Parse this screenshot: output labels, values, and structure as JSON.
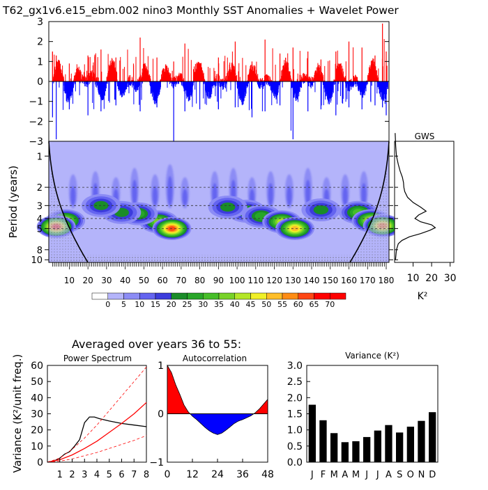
{
  "chart_data": [
    {
      "type": "bar",
      "title": "T62_gx1v6.e15_ebm.002 nino3 Monthly SST Anomalies + Wavelet Power",
      "xlabel": "",
      "ylabel": "",
      "ylim": [
        -3,
        3
      ],
      "yticks": [
        "3",
        "2",
        "1",
        "0",
        "−1",
        "−2",
        "−3"
      ],
      "colors": {
        "positive": "#ff0000",
        "negative": "#0000ff"
      },
      "x_range_years": [
        1,
        180
      ],
      "envelope": [
        {
          "year": 1,
          "max": 1.5,
          "min": -1.8
        },
        {
          "year": 3,
          "max": 1.3,
          "min": -2.9
        },
        {
          "year": 10,
          "max": 0.9,
          "min": -1.4
        },
        {
          "year": 20,
          "max": 1.3,
          "min": -1.7
        },
        {
          "year": 27,
          "max": 1.6,
          "min": -1.5
        },
        {
          "year": 35,
          "max": 1.2,
          "min": -1.2
        },
        {
          "year": 48,
          "max": 2.2,
          "min": -1.5
        },
        {
          "year": 57,
          "max": 1.2,
          "min": -1.3
        },
        {
          "year": 66,
          "max": 1.0,
          "min": -3.0
        },
        {
          "year": 72,
          "max": 1.9,
          "min": -1.5
        },
        {
          "year": 80,
          "max": 0.9,
          "min": -1.4
        },
        {
          "year": 90,
          "max": 1.2,
          "min": -1.4
        },
        {
          "year": 99,
          "max": 2.0,
          "min": -1.3
        },
        {
          "year": 108,
          "max": 1.0,
          "min": -1.8
        },
        {
          "year": 115,
          "max": 2.1,
          "min": -1.5
        },
        {
          "year": 123,
          "max": 1.4,
          "min": -1.2
        },
        {
          "year": 130,
          "max": 1.7,
          "min": -2.9
        },
        {
          "year": 138,
          "max": 1.5,
          "min": -1.5
        },
        {
          "year": 145,
          "max": 1.1,
          "min": -1.4
        },
        {
          "year": 153,
          "max": 1.5,
          "min": -1.7
        },
        {
          "year": 160,
          "max": 2.0,
          "min": -1.3
        },
        {
          "year": 167,
          "max": 1.7,
          "min": -1.4
        },
        {
          "year": 174,
          "max": 1.3,
          "min": -1.2
        },
        {
          "year": 178,
          "max": 2.9,
          "min": -1.3
        },
        {
          "year": 180,
          "max": 1.5,
          "min": -1.7
        }
      ]
    },
    {
      "type": "heatmap",
      "ylabel": "Period (years)",
      "xticks": [
        "10",
        "20",
        "30",
        "40",
        "50",
        "60",
        "70",
        "80",
        "90",
        "100",
        "110",
        "120",
        "130",
        "140",
        "150",
        "160",
        "170",
        "180"
      ],
      "yticks": [
        "1",
        "2",
        "3",
        "4",
        "5",
        "8",
        "10"
      ],
      "colorbar_labels": [
        "0",
        "5",
        "10",
        "15",
        "20",
        "25",
        "30",
        "35",
        "40",
        "45",
        "50",
        "55",
        "60",
        "65",
        "70"
      ],
      "colorbar_colors": [
        "#ffffff",
        "#b4b4fa",
        "#8c8cf5",
        "#6464f0",
        "#3c3cdc",
        "#1a8c28",
        "#28a628",
        "#46be28",
        "#78d228",
        "#b4e628",
        "#f0f028",
        "#ffbe28",
        "#ff8c14",
        "#ff4614",
        "#ff0000"
      ],
      "background_color": "#b4b4fa",
      "dashed_period_lines": [
        2,
        3,
        4,
        5
      ],
      "blobs": [
        {
          "year": 58,
          "period": 4.3,
          "level": 7
        },
        {
          "year": 65,
          "period": 5.0,
          "level": 12
        },
        {
          "year": 47,
          "period": 3.6,
          "level": 5
        },
        {
          "year": 38,
          "period": 3.5,
          "level": 4
        },
        {
          "year": 27,
          "period": 3.0,
          "level": 4
        },
        {
          "year": 8,
          "period": 4.2,
          "level": 8
        },
        {
          "year": 3,
          "period": 4.8,
          "level": 12
        },
        {
          "year": 105,
          "period": 3.4,
          "level": 5
        },
        {
          "year": 113,
          "period": 3.8,
          "level": 5
        },
        {
          "year": 124,
          "period": 4.3,
          "level": 8
        },
        {
          "year": 131,
          "period": 5.0,
          "level": 10
        },
        {
          "year": 95,
          "period": 3.1,
          "level": 4
        },
        {
          "year": 145,
          "period": 3.3,
          "level": 4
        },
        {
          "year": 165,
          "period": 3.5,
          "level": 6
        },
        {
          "year": 172,
          "period": 4.2,
          "level": 9
        },
        {
          "year": 178,
          "period": 4.7,
          "level": 11
        }
      ]
    },
    {
      "type": "line",
      "title": "GWS",
      "xlabel": "K²",
      "xticks": [
        "10",
        "20",
        "30"
      ],
      "xlim": [
        0,
        32
      ],
      "x": [
        0.3,
        0.6,
        1.0,
        2.0,
        3.0,
        4.2,
        4.8,
        5.0,
        5.5,
        7.0,
        10.0,
        14.0,
        17.0,
        13.0,
        11.0,
        14.0,
        20.0,
        22.0,
        19.0,
        14.0,
        8.0,
        4.0,
        2.0,
        1.0,
        0.5
      ],
      "periods": [
        0.6,
        0.8,
        1.0,
        1.2,
        1.4,
        1.6,
        1.8,
        2.0,
        2.2,
        2.5,
        2.8,
        3.1,
        3.4,
        3.7,
        4.0,
        4.3,
        4.6,
        4.9,
        5.2,
        5.6,
        6.0,
        6.5,
        7.0,
        8.0,
        10.0
      ]
    },
    {
      "title_top": "Averaged over years 36 to 55:",
      "panels": [
        {
          "type": "line",
          "title": "Power Spectrum",
          "ylabel": "Variance (K²/unit freq.)",
          "ylim": [
            0,
            60
          ],
          "xlim": [
            0,
            8
          ],
          "xticks": [
            "1",
            "2",
            "3",
            "4",
            "5",
            "6",
            "7",
            "8"
          ],
          "yticks": [
            "0",
            "10",
            "20",
            "30",
            "40",
            "50",
            "60"
          ],
          "series": [
            {
              "color": "#000000",
              "x": [
                0,
                0.3,
                0.6,
                1.0,
                1.4,
                1.8,
                2.2,
                2.6,
                3.0,
                3.4,
                3.8,
                4.2,
                5.0,
                6.0,
                7.0,
                8.0
              ],
              "values": [
                0,
                0.3,
                1.0,
                2.5,
                5.0,
                6.5,
                10.0,
                14.0,
                24.5,
                28.0,
                28.0,
                27.0,
                25.5,
                24.0,
                23.0,
                22.0
              ]
            },
            {
              "color": "#ff0000",
              "x": [
                0,
                1,
                2,
                3,
                4,
                5,
                6,
                7,
                8
              ],
              "values": [
                0,
                1.5,
                4.5,
                8.5,
                13.0,
                18.5,
                24.0,
                30.0,
                37.0
              ]
            },
            {
              "color": "#ff0000",
              "dashed": true,
              "x": [
                0,
                1,
                2,
                3,
                4,
                5,
                6,
                7,
                8
              ],
              "values": [
                0,
                2.5,
                8.0,
                15.0,
                23.0,
                32.0,
                41.0,
                50.0,
                59.0
              ]
            },
            {
              "color": "#ff0000",
              "dashed": true,
              "x": [
                0,
                1,
                2,
                3,
                4,
                5,
                6,
                7,
                8
              ],
              "values": [
                0,
                0.6,
                2.0,
                4.0,
                6.0,
                8.5,
                11.0,
                13.5,
                16.5
              ]
            }
          ]
        },
        {
          "type": "area",
          "title": "Autocorrelation",
          "ylim": [
            -1,
            1
          ],
          "xlim": [
            0,
            48
          ],
          "xticks": [
            "0",
            "12",
            "24",
            "36",
            "48"
          ],
          "yticks": [
            "−1",
            "0",
            "1"
          ],
          "colors": {
            "positive": "#ff0000",
            "negative": "#0000ff"
          },
          "x": [
            0,
            2,
            4,
            6,
            8,
            10,
            12,
            14,
            16,
            18,
            20,
            22,
            24,
            26,
            28,
            30,
            32,
            34,
            36,
            38,
            40,
            42,
            44,
            46,
            48
          ],
          "values": [
            1.0,
            0.85,
            0.6,
            0.4,
            0.18,
            0.04,
            -0.05,
            -0.12,
            -0.2,
            -0.28,
            -0.35,
            -0.4,
            -0.43,
            -0.4,
            -0.34,
            -0.27,
            -0.2,
            -0.15,
            -0.12,
            -0.08,
            -0.04,
            0.02,
            0.1,
            0.2,
            0.3
          ]
        },
        {
          "type": "bar",
          "title": "Variance (K²)",
          "ylim": [
            0,
            3.0
          ],
          "yticks": [
            "0.0",
            "0.5",
            "1.0",
            "1.5",
            "2.0",
            "2.5",
            "3.0"
          ],
          "categories": [
            "J",
            "F",
            "M",
            "A",
            "M",
            "J",
            "J",
            "A",
            "S",
            "O",
            "N",
            "D"
          ],
          "values": [
            1.78,
            1.3,
            0.9,
            0.62,
            0.65,
            0.78,
            0.98,
            1.15,
            0.92,
            1.1,
            1.28,
            1.55
          ],
          "color": "#000000"
        }
      ]
    }
  ]
}
